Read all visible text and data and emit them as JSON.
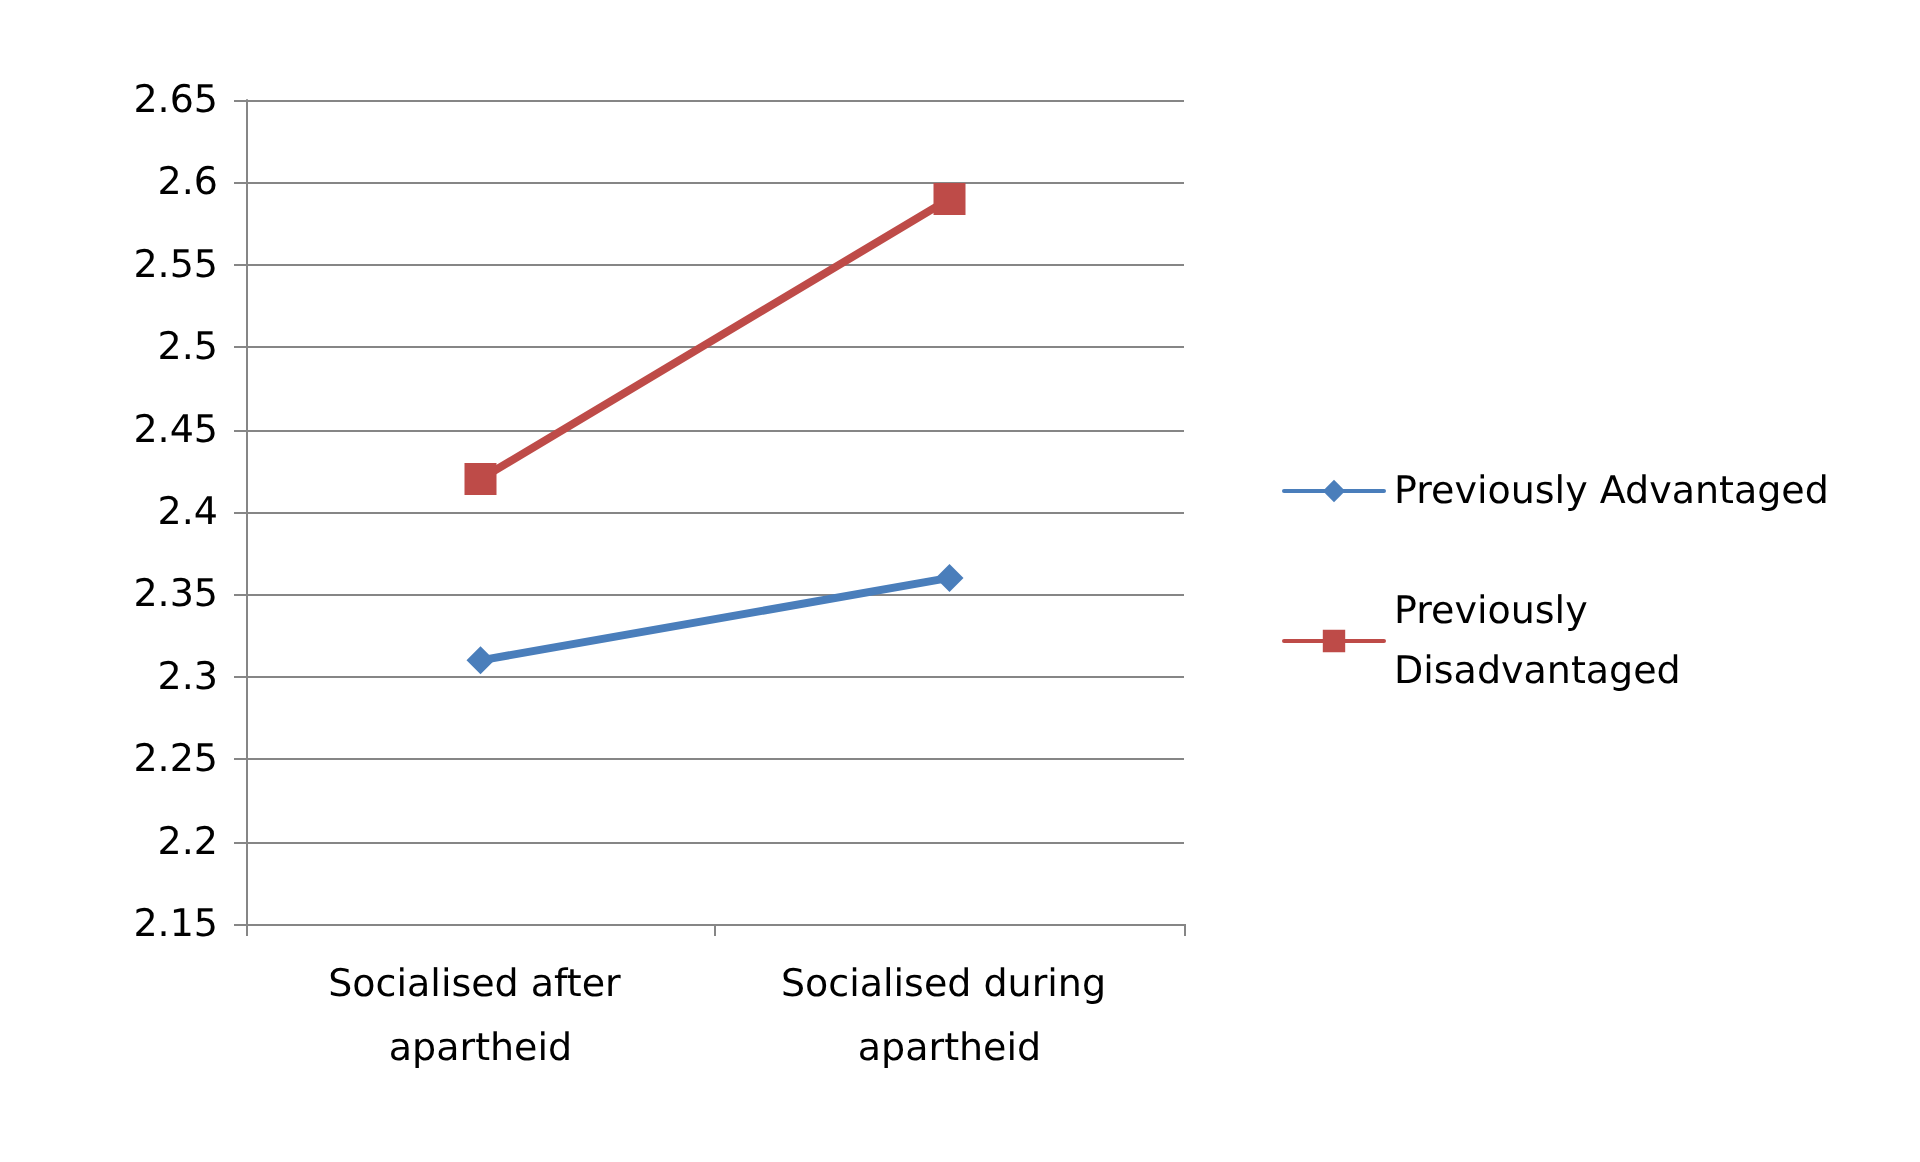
{
  "chart_data": {
    "type": "line",
    "categories": [
      "Socialised after apartheid",
      "Socialised during apartheid"
    ],
    "series": [
      {
        "name": "Previously Advantaged",
        "color": "#4a7ebb",
        "values": [
          2.31,
          2.36
        ],
        "marker": "diamond"
      },
      {
        "name": "Previously Disadvantaged",
        "color": "#be4b48",
        "values": [
          2.42,
          2.59
        ],
        "marker": "square"
      }
    ],
    "ylim": [
      2.15,
      2.65
    ],
    "yticks": [
      2.15,
      2.2,
      2.25,
      2.3,
      2.35,
      2.4,
      2.45,
      2.5,
      2.55,
      2.6,
      2.65
    ],
    "grid": "y",
    "legend": "right",
    "line_style": "solid"
  }
}
